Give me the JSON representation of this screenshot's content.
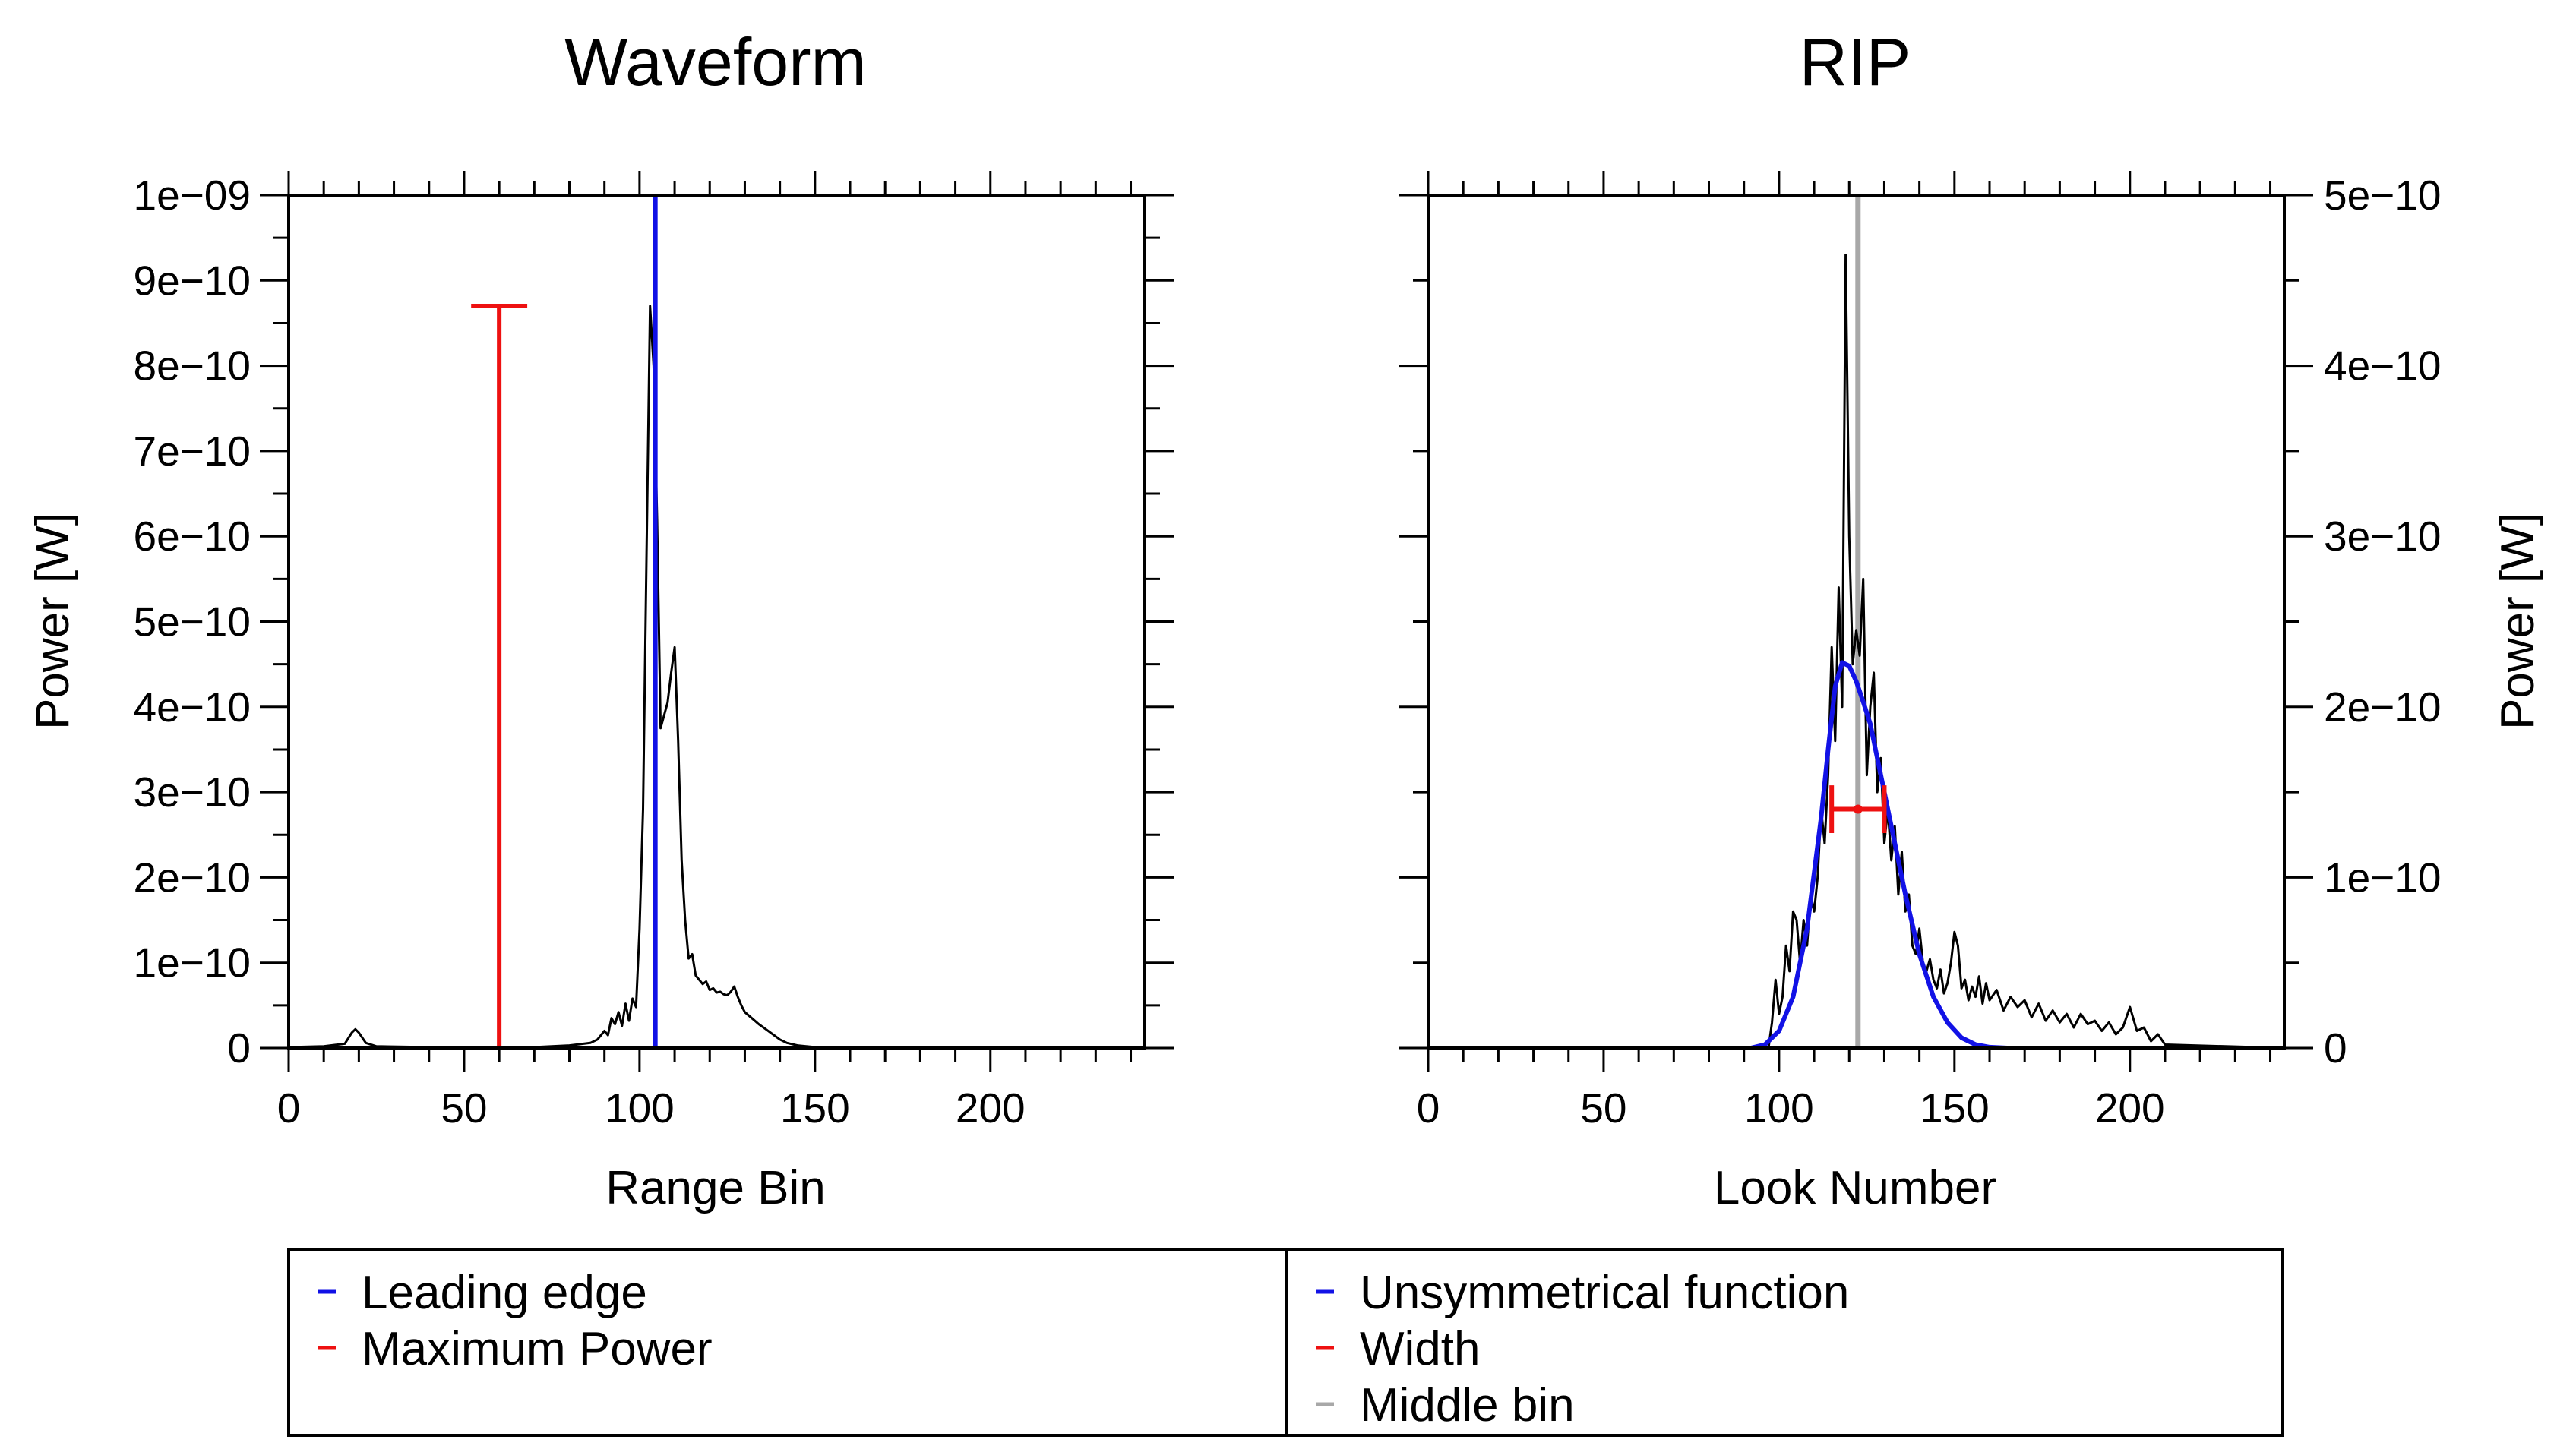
{
  "colors": {
    "signal": "#000000",
    "leading_edge": "#1010e6",
    "max_power": "#ee1111",
    "fit": "#1212e6",
    "width": "#ee1111",
    "middle_bin": "#a8a8a8"
  },
  "chart_data": [
    {
      "type": "line",
      "title": "Waveform",
      "xlabel": "Range Bin",
      "ylabel": "Power [W]",
      "xlim": [
        0,
        244
      ],
      "ylim": [
        0,
        1e-09
      ],
      "xticks": [
        0,
        50,
        100,
        150,
        200
      ],
      "xtick_labels": [
        "0",
        "50",
        "100",
        "150",
        "200"
      ],
      "yticks": [
        0,
        1e-10,
        2e-10,
        3e-10,
        4e-10,
        5e-10,
        6e-10,
        7e-10,
        8e-10,
        9e-10,
        1e-09
      ],
      "ytick_labels": [
        "0",
        "1e−10",
        "2e−10",
        "3e−10",
        "4e−10",
        "5e−10",
        "6e−10",
        "7e−10",
        "8e−10",
        "9e−10",
        "1e−09"
      ],
      "grid": false,
      "series": [
        {
          "name": "Waveform",
          "x": [
            0,
            10,
            16,
            18,
            19,
            20,
            22,
            25,
            40,
            70,
            80,
            86,
            88,
            90,
            91,
            92,
            93,
            94,
            95,
            96,
            97,
            98,
            99,
            100,
            101,
            102,
            103,
            104,
            105,
            106,
            107,
            108,
            109,
            110,
            111,
            112,
            113,
            114,
            115,
            116,
            117,
            118,
            119,
            120,
            121,
            122,
            123,
            124,
            125,
            126,
            127,
            128,
            129,
            130,
            132,
            134,
            136,
            138,
            140,
            142,
            145,
            150,
            160,
            172,
            244
          ],
          "y": [
            1e-12,
            2e-12,
            5e-12,
            1.8e-11,
            2.2e-11,
            1.8e-11,
            6e-12,
            2e-12,
            1e-12,
            1e-12,
            3e-12,
            6e-12,
            1e-11,
            2e-11,
            1.5e-11,
            3.5e-11,
            2.8e-11,
            4.2e-11,
            2.6e-11,
            5.2e-11,
            3.2e-11,
            5.8e-11,
            4.8e-11,
            1.4e-10,
            2.8e-10,
            5.8e-10,
            8.7e-10,
            8e-10,
            6.2e-10,
            3.75e-10,
            3.9e-10,
            4.05e-10,
            4.4e-10,
            4.7e-10,
            3.6e-10,
            2.2e-10,
            1.5e-10,
            1.05e-10,
            1.1e-10,
            8.5e-11,
            8e-11,
            7.5e-11,
            7.8e-11,
            6.8e-11,
            7e-11,
            6.5e-11,
            6.6e-11,
            6.3e-11,
            6.2e-11,
            6.6e-11,
            7.2e-11,
            6e-11,
            5e-11,
            4.2e-11,
            3.5e-11,
            2.8e-11,
            2.2e-11,
            1.6e-11,
            1e-11,
            6e-12,
            3e-12,
            1e-12,
            1e-12,
            5e-13,
            0
          ]
        }
      ],
      "annotations": [
        {
          "name": "Leading edge",
          "kind": "vertical-line",
          "x": 104.5
        },
        {
          "name": "Maximum Power",
          "kind": "error-bar",
          "x": 60,
          "y_low": 0,
          "y_high": 8.7e-10,
          "cap_half_width": 8
        }
      ]
    },
    {
      "type": "line",
      "title": "RIP",
      "xlabel": "Look Number",
      "ylabel": "Power [W]",
      "xlim": [
        0,
        244
      ],
      "ylim": [
        0,
        5e-10
      ],
      "xticks": [
        0,
        50,
        100,
        150,
        200
      ],
      "xtick_labels": [
        "0",
        "50",
        "100",
        "150",
        "200"
      ],
      "yticks": [
        0,
        1e-10,
        2e-10,
        3e-10,
        4e-10,
        5e-10
      ],
      "ytick_labels": [
        "0",
        "1e−10",
        "2e−10",
        "3e−10",
        "4e−10",
        "5e−10"
      ],
      "grid": false,
      "series": [
        {
          "name": "RIP",
          "x": [
            0,
            97,
            98,
            99,
            100,
            101,
            102,
            103,
            104,
            105,
            106,
            107,
            108,
            109,
            110,
            111,
            112,
            113,
            114,
            115,
            116,
            117,
            118,
            119,
            120,
            121,
            122,
            123,
            124,
            125,
            126,
            127,
            128,
            129,
            130,
            131,
            132,
            133,
            134,
            135,
            136,
            137,
            138,
            139,
            140,
            141,
            142,
            143,
            144,
            145,
            146,
            147,
            148,
            149,
            150,
            151,
            152,
            153,
            154,
            155,
            156,
            157,
            158,
            159,
            160,
            162,
            164,
            166,
            168,
            170,
            172,
            174,
            176,
            178,
            180,
            182,
            184,
            186,
            188,
            190,
            192,
            194,
            196,
            198,
            200,
            202,
            204,
            206,
            208,
            210,
            244
          ],
          "y": [
            0,
            0,
            1.5e-11,
            4e-11,
            2e-11,
            3e-11,
            6e-11,
            4.5e-11,
            8e-11,
            7.5e-11,
            5e-11,
            7.5e-11,
            6e-11,
            9e-11,
            8e-11,
            1e-10,
            1.4e-10,
            1.2e-10,
            1.6e-10,
            2.35e-10,
            1.8e-10,
            2.7e-10,
            2e-10,
            4.65e-10,
            3e-10,
            2.25e-10,
            2.45e-10,
            2.3e-10,
            2.75e-10,
            1.6e-10,
            2e-10,
            2.2e-10,
            1.5e-10,
            1.7e-10,
            1.2e-10,
            1.4e-10,
            1.1e-10,
            1.3e-10,
            9e-11,
            1.15e-10,
            8e-11,
            9e-11,
            6e-11,
            5.5e-11,
            7e-11,
            5e-11,
            4.5e-11,
            5.2e-11,
            4e-11,
            3.5e-11,
            4.6e-11,
            3.2e-11,
            3.8e-11,
            5e-11,
            6.8e-11,
            6e-11,
            3.5e-11,
            4e-11,
            2.8e-11,
            3.6e-11,
            3e-11,
            4.2e-11,
            2.6e-11,
            3.8e-11,
            2.8e-11,
            3.4e-11,
            2.2e-11,
            3e-11,
            2.4e-11,
            2.8e-11,
            1.8e-11,
            2.6e-11,
            1.6e-11,
            2.2e-11,
            1.5e-11,
            2e-11,
            1.2e-11,
            2e-11,
            1.4e-11,
            1.6e-11,
            1e-11,
            1.5e-11,
            8e-12,
            1.2e-11,
            2.4e-11,
            1e-11,
            1.2e-11,
            4e-12,
            8e-12,
            2e-12,
            0
          ]
        },
        {
          "name": "Unsymmetrical function",
          "x": [
            0,
            92,
            96,
            100,
            104,
            108,
            112,
            114,
            116,
            118,
            120,
            122,
            124,
            126,
            128,
            130,
            132,
            134,
            136,
            140,
            144,
            148,
            152,
            156,
            160,
            165,
            244
          ],
          "y": [
            0,
            0,
            2e-12,
            1e-11,
            3e-11,
            7e-11,
            1.35e-10,
            1.75e-10,
            2.12e-10,
            2.26e-10,
            2.24e-10,
            2.15e-10,
            2.03e-10,
            1.9e-10,
            1.7e-10,
            1.5e-10,
            1.3e-10,
            1.1e-10,
            9e-11,
            5.5e-11,
            3e-11,
            1.5e-11,
            6e-12,
            2e-12,
            5e-13,
            0,
            0
          ]
        }
      ],
      "annotations": [
        {
          "name": "Middle bin",
          "kind": "vertical-line",
          "x": 122.5
        },
        {
          "name": "Width",
          "kind": "horizontal-error-bar",
          "y": 1.4e-10,
          "x_low": 115,
          "x_high": 130,
          "center_x": 122.5,
          "cap_half_height": 1.4e-11
        }
      ]
    }
  ],
  "legend": {
    "left": [
      {
        "label": "Leading edge",
        "color": "#1010e6"
      },
      {
        "label": "Maximum Power",
        "color": "#ee1111"
      }
    ],
    "right": [
      {
        "label": "Unsymmetrical function",
        "color": "#1212e6"
      },
      {
        "label": "Width",
        "color": "#ee1111"
      },
      {
        "label": "Middle bin",
        "color": "#a8a8a8"
      }
    ]
  }
}
